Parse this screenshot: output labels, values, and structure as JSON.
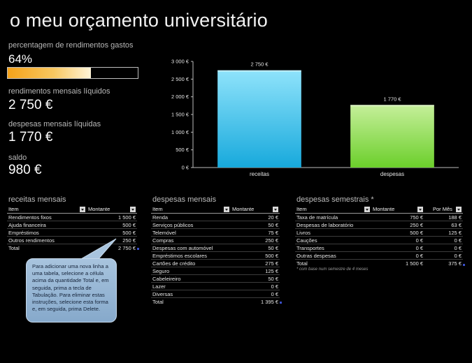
{
  "title": "o meu orçamento universitário",
  "kpis": {
    "pct_label": "percentagem de rendimentos gastos",
    "pct_value": "64%",
    "pct_fraction": 0.64,
    "income_label": "rendimentos mensais líquidos",
    "income_value": "2 750 €",
    "expense_label": "despesas mensais líquidas",
    "expense_value": "1 770 €",
    "balance_label": "saldo",
    "balance_value": "980 €"
  },
  "colors": {
    "receitas_top": "#8fe3fb",
    "receitas_bottom": "#17a9dc",
    "despesas_top": "#c5ef9a",
    "despesas_bottom": "#6ccf2b",
    "progress": "#f4a21a"
  },
  "chart_data": {
    "type": "bar",
    "categories": [
      "receitas",
      "despesas"
    ],
    "values": [
      2750,
      1770
    ],
    "data_labels": [
      "2 750 €",
      "1 770 €"
    ],
    "ylim": [
      0,
      3000
    ],
    "yticks": [
      0,
      500,
      1000,
      1500,
      2000,
      2500,
      3000
    ],
    "ytick_labels": [
      "0 €",
      "500 €",
      "1 000 €",
      "1 500 €",
      "2 000 €",
      "2 500 €",
      "3 000 €"
    ],
    "title": "",
    "xlabel": "",
    "ylabel": "",
    "grid": false
  },
  "receitas": {
    "title": "receitas mensais",
    "headers": [
      "Item",
      "Montante"
    ],
    "rows": [
      [
        "Rendimentos fixos",
        "1 500 €"
      ],
      [
        "Ajuda financeira",
        "500 €"
      ],
      [
        "Empréstimos",
        "500 €"
      ],
      [
        "Outros rendimentos",
        "250 €"
      ]
    ],
    "total_label": "Total",
    "total_value": "2 750 €"
  },
  "despesas": {
    "title": "despesas mensais",
    "headers": [
      "Item",
      "Montante"
    ],
    "rows": [
      [
        "Renda",
        "20 €"
      ],
      [
        "Serviços públicos",
        "50 €"
      ],
      [
        "Telemóvel",
        "75 €"
      ],
      [
        "Compras",
        "250 €"
      ],
      [
        "Despesas com automóvel",
        "50 €"
      ],
      [
        "Empréstimos escolares",
        "500 €"
      ],
      [
        "Cartões de crédito",
        "275 €"
      ],
      [
        "Seguro",
        "125 €"
      ],
      [
        "Cabeleireiro",
        "50 €"
      ],
      [
        "Lazer",
        "0 €"
      ],
      [
        "Diversas",
        "0 €"
      ]
    ],
    "total_label": "Total",
    "total_value": "1 395 €"
  },
  "semestrais": {
    "title": "despesas semestrais *",
    "headers": [
      "Item",
      "Montante",
      "Por Mês"
    ],
    "rows": [
      [
        "Taxa de matrícula",
        "750 €",
        "188 €"
      ],
      [
        "Despesas de laboratório",
        "250 €",
        "63 €"
      ],
      [
        "Livros",
        "500 €",
        "125 €"
      ],
      [
        "Cauções",
        "0 €",
        "0 €"
      ],
      [
        "Transportes",
        "0 €",
        "0 €"
      ],
      [
        "Outras despesas",
        "0 €",
        "0 €"
      ]
    ],
    "total_label": "Total",
    "total_value": "1 500 €",
    "total_month": "375 €",
    "footnote": "* com base num semestre de 4 meses"
  },
  "callout": {
    "text": "Para adicionar uma nova linha a uma tabela, selecione a célula acima da quantidade Total e, em seguida, prima a tecla de Tabulação. Para eliminar estas instruções, selecione esta forma e, em seguida, prima Delete."
  }
}
